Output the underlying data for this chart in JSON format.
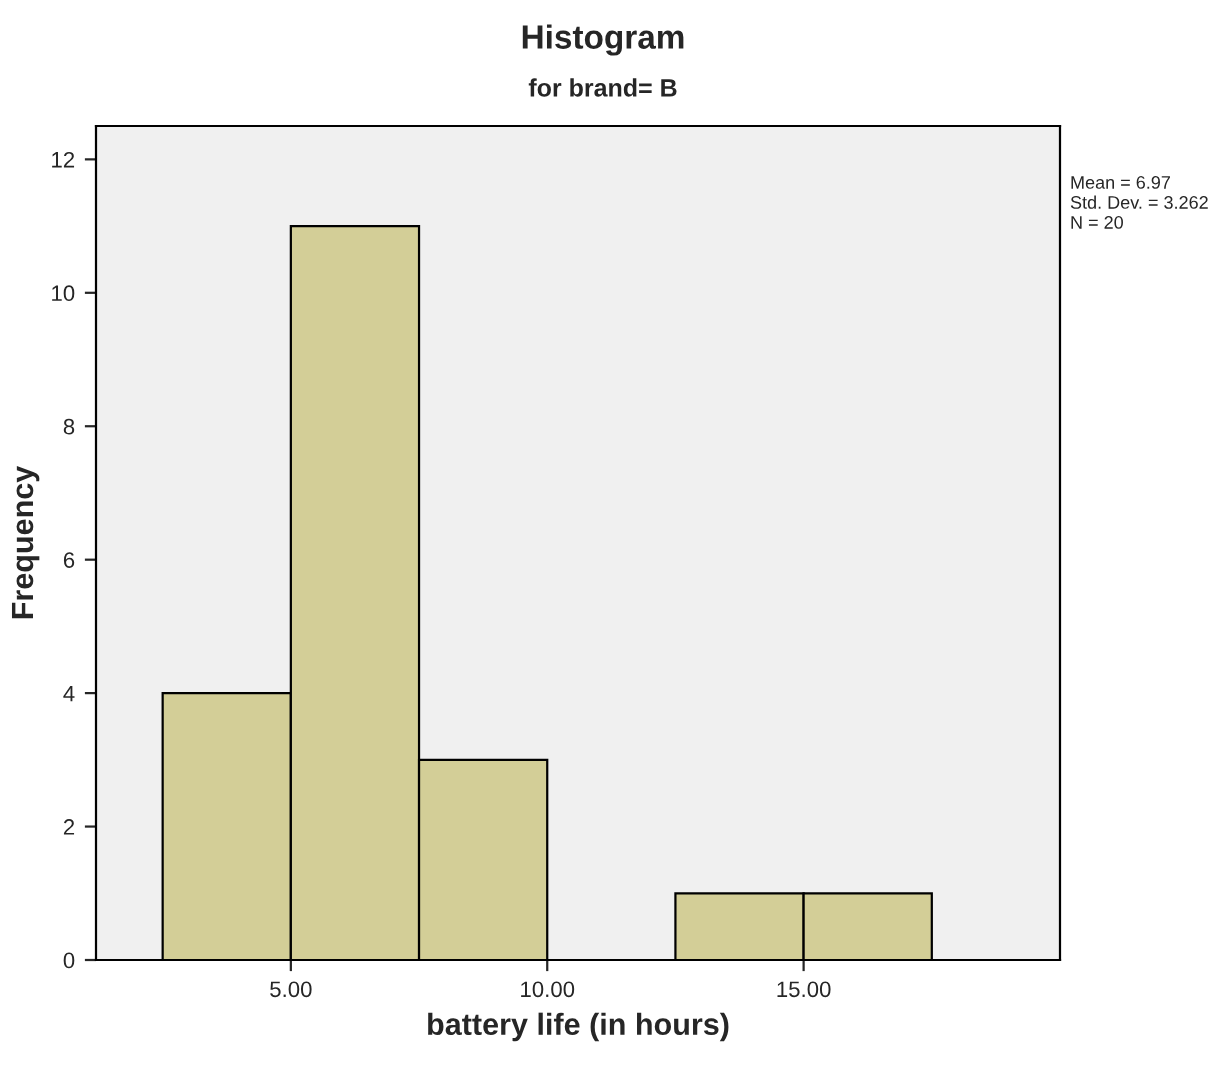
{
  "chart_data": {
    "type": "histogram",
    "title": "Histogram",
    "subtitle": "for brand= B",
    "xlabel": "battery life (in hours)",
    "ylabel": "Frequency",
    "bins": [
      2.5,
      5,
      7.5,
      10,
      12.5,
      15,
      17.5
    ],
    "values": [
      4,
      11,
      3,
      0,
      1,
      1
    ],
    "color": "#d3ce97",
    "xlim": [
      1.2,
      20
    ],
    "xticks": [
      {
        "value": 5,
        "label": "5.00"
      },
      {
        "value": 10,
        "label": "10.00"
      },
      {
        "value": 15,
        "label": "15.00"
      }
    ],
    "ylim": [
      0,
      12.5
    ],
    "yticks": [
      0,
      2,
      4,
      6,
      8,
      10,
      12
    ],
    "annotations": [
      "Mean = 6.97",
      "Std. Dev. = 3.262",
      "N = 20"
    ],
    "grid": false,
    "legend": false
  }
}
